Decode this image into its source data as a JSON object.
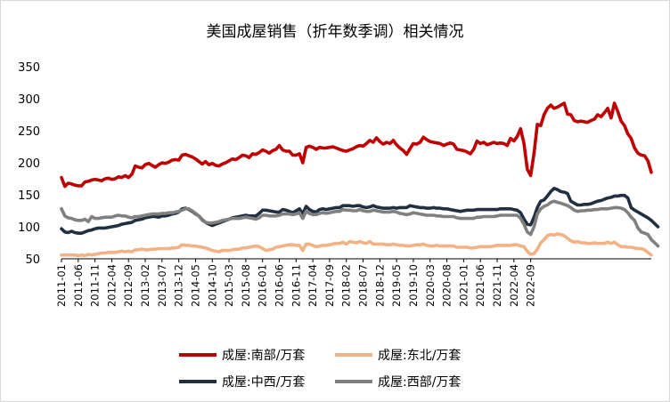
{
  "chart_data": {
    "type": "line",
    "title": "美国成屋销售（折年数季调）相关情况",
    "xlabel": "",
    "ylabel": "",
    "ylim": [
      50,
      350
    ],
    "yticks": [
      50,
      100,
      150,
      200,
      250,
      300,
      350
    ],
    "grid": false,
    "legend_position": "bottom",
    "x_start": "2011-01",
    "x_tick_labels": [
      "2011-01",
      "2011-06",
      "2011-11",
      "2012-04",
      "2012-09",
      "2013-02",
      "2013-07",
      "2013-12",
      "2014-05",
      "2014-10",
      "2015-03",
      "2015-08",
      "2016-01",
      "2016-06",
      "2016-11",
      "2017-04",
      "2017-09",
      "2018-02",
      "2018-07",
      "2018-12",
      "2019-05",
      "2019-10",
      "2020-03",
      "2020-08",
      "2021-01",
      "2021-06",
      "2021-11",
      "2022-04",
      "2022-09"
    ],
    "series": [
      {
        "name": "成屋:南部/万套",
        "color": "#C00000",
        "values": [
          177,
          163,
          168,
          167,
          165,
          164,
          164,
          170,
          171,
          173,
          174,
          173,
          172,
          175,
          176,
          174,
          175,
          178,
          177,
          180,
          177,
          182,
          195,
          193,
          192,
          197,
          199,
          196,
          193,
          197,
          200,
          199,
          201,
          204,
          205,
          204,
          212,
          213,
          211,
          209,
          206,
          202,
          198,
          202,
          197,
          199,
          196,
          195,
          198,
          200,
          203,
          206,
          205,
          208,
          212,
          211,
          208,
          214,
          213,
          216,
          220,
          218,
          215,
          219,
          221,
          227,
          220,
          218,
          218,
          212,
          212,
          214,
          200,
          224,
          226,
          224,
          221,
          224,
          223,
          223,
          224,
          225,
          223,
          221,
          219,
          218,
          220,
          222,
          225,
          227,
          226,
          230,
          235,
          232,
          239,
          233,
          229,
          232,
          230,
          235,
          228,
          223,
          219,
          213,
          222,
          230,
          229,
          232,
          240,
          236,
          233,
          232,
          231,
          230,
          227,
          229,
          231,
          229,
          221,
          220,
          219,
          217,
          214,
          221,
          234,
          230,
          232,
          228,
          230,
          232,
          230,
          231,
          230,
          227,
          238,
          234,
          241,
          253,
          230,
          190,
          180,
          215,
          260,
          258,
          275,
          285,
          290,
          285,
          287,
          290,
          293,
          276,
          275,
          266,
          264,
          265,
          264,
          263,
          266,
          268,
          275,
          272,
          278,
          285,
          270,
          293,
          280,
          265,
          258,
          245,
          238,
          223,
          215,
          212,
          211,
          203,
          185
        ]
      },
      {
        "name": "成屋:东北/万套",
        "color": "#F4B183",
        "values": [
          56,
          56,
          56,
          56,
          56,
          55,
          56,
          55,
          57,
          56,
          57,
          58,
          59,
          59,
          60,
          60,
          60,
          61,
          62,
          61,
          62,
          61,
          64,
          64,
          65,
          64,
          64,
          65,
          65,
          66,
          66,
          66,
          66,
          67,
          67,
          68,
          72,
          71,
          71,
          70,
          70,
          69,
          68,
          67,
          65,
          63,
          62,
          61,
          63,
          63,
          63,
          64,
          65,
          65,
          67,
          67,
          68,
          69,
          70,
          69,
          66,
          63,
          64,
          65,
          68,
          69,
          70,
          71,
          72,
          72,
          71,
          71,
          63,
          73,
          73,
          71,
          69,
          70,
          71,
          71,
          72,
          73,
          74,
          74,
          76,
          73,
          77,
          76,
          75,
          77,
          75,
          74,
          77,
          73,
          73,
          73,
          73,
          72,
          72,
          73,
          72,
          71,
          71,
          70,
          70,
          71,
          72,
          72,
          73,
          71,
          70,
          70,
          71,
          70,
          70,
          70,
          70,
          70,
          68,
          68,
          68,
          68,
          67,
          67,
          68,
          69,
          69,
          69,
          69,
          70,
          71,
          71,
          71,
          71,
          71,
          72,
          72,
          70,
          69,
          62,
          57,
          58,
          65,
          75,
          80,
          86,
          88,
          87,
          89,
          88,
          86,
          82,
          78,
          76,
          77,
          75,
          75,
          74,
          74,
          75,
          74,
          74,
          74,
          76,
          74,
          76,
          72,
          69,
          69,
          68,
          68,
          67,
          66,
          66,
          64,
          60,
          56
        ]
      },
      {
        "name": "成屋:中西/万套",
        "color": "#203040",
        "values": [
          97,
          92,
          91,
          93,
          91,
          90,
          90,
          92,
          94,
          95,
          97,
          98,
          98,
          98,
          99,
          100,
          101,
          102,
          104,
          105,
          106,
          107,
          110,
          111,
          112,
          114,
          115,
          116,
          116,
          115,
          117,
          117,
          118,
          120,
          121,
          123,
          128,
          129,
          127,
          124,
          120,
          117,
          111,
          107,
          104,
          102,
          104,
          106,
          108,
          110,
          112,
          114,
          115,
          116,
          117,
          118,
          117,
          117,
          117,
          121,
          126,
          126,
          125,
          124,
          123,
          123,
          127,
          126,
          124,
          122,
          125,
          128,
          120,
          132,
          127,
          124,
          123,
          127,
          128,
          127,
          128,
          129,
          130,
          130,
          133,
          133,
          133,
          132,
          133,
          133,
          131,
          130,
          131,
          133,
          131,
          130,
          129,
          129,
          129,
          130,
          129,
          130,
          130,
          130,
          133,
          132,
          131,
          130,
          130,
          129,
          129,
          130,
          129,
          129,
          128,
          128,
          127,
          126,
          125,
          124,
          125,
          126,
          126,
          126,
          127,
          127,
          127,
          127,
          127,
          127,
          127,
          128,
          128,
          128,
          128,
          127,
          126,
          122,
          112,
          104,
          103,
          115,
          130,
          140,
          142,
          148,
          155,
          160,
          158,
          155,
          154,
          152,
          140,
          137,
          134,
          134,
          135,
          135,
          136,
          138,
          140,
          141,
          143,
          145,
          146,
          148,
          148,
          149,
          149,
          145,
          130,
          126,
          123,
          120,
          117,
          114,
          110,
          105,
          100
        ]
      },
      {
        "name": "成屋:西部/万套",
        "color": "#808080",
        "values": [
          128,
          117,
          114,
          113,
          111,
          110,
          110,
          112,
          108,
          116,
          113,
          113,
          114,
          115,
          115,
          115,
          117,
          118,
          117,
          117,
          115,
          114,
          116,
          116,
          117,
          118,
          119,
          120,
          120,
          120,
          121,
          121,
          122,
          122,
          123,
          124,
          126,
          128,
          128,
          125,
          121,
          117,
          110,
          107,
          106,
          106,
          107,
          108,
          110,
          111,
          112,
          113,
          113,
          113,
          114,
          115,
          114,
          113,
          112,
          114,
          118,
          118,
          117,
          117,
          117,
          118,
          120,
          120,
          120,
          119,
          120,
          122,
          113,
          124,
          121,
          119,
          119,
          121,
          122,
          121,
          122,
          123,
          124,
          124,
          127,
          126,
          126,
          125,
          125,
          127,
          125,
          124,
          124,
          126,
          125,
          124,
          123,
          123,
          123,
          124,
          123,
          121,
          120,
          119,
          120,
          122,
          121,
          120,
          119,
          118,
          118,
          118,
          117,
          117,
          116,
          116,
          116,
          116,
          114,
          113,
          113,
          113,
          113,
          113,
          115,
          115,
          116,
          116,
          116,
          116,
          117,
          118,
          118,
          118,
          118,
          118,
          118,
          113,
          104,
          92,
          88,
          100,
          120,
          128,
          132,
          134,
          138,
          140,
          138,
          137,
          135,
          133,
          130,
          126,
          124,
          125,
          125,
          126,
          126,
          127,
          127,
          128,
          128,
          128,
          129,
          130,
          130,
          129,
          127,
          122,
          115,
          110,
          98,
          92,
          90,
          88,
          80,
          75,
          70
        ]
      }
    ]
  }
}
